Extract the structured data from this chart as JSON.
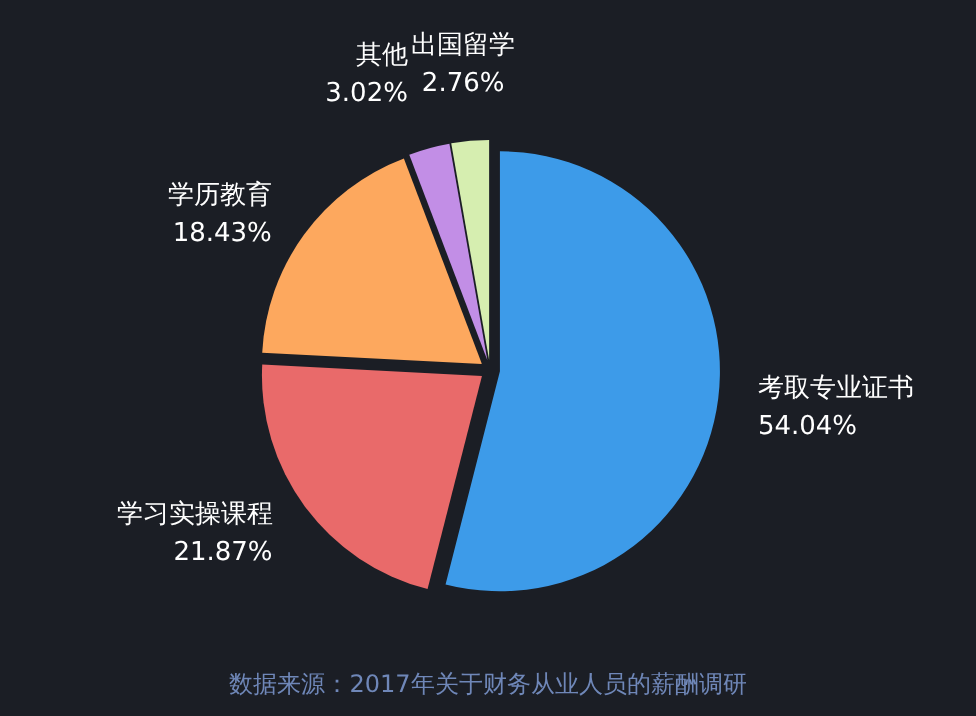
{
  "chart_data": {
    "type": "pie",
    "categories": [
      "考取专业证书",
      "学习实操课程",
      "学历教育",
      "其他",
      "出国留学"
    ],
    "values": [
      54.04,
      21.87,
      18.43,
      3.02,
      2.76
    ],
    "value_labels": [
      "54.04%",
      "21.87%",
      "18.43%",
      "3.02%",
      "2.76%"
    ],
    "colors": [
      "#3d9be9",
      "#e96a6a",
      "#fda85e",
      "#c28ee6",
      "#d6eeb0"
    ],
    "annotations": [
      "数据来源：2017年关于财务从业人员的薪酬调研"
    ]
  }
}
